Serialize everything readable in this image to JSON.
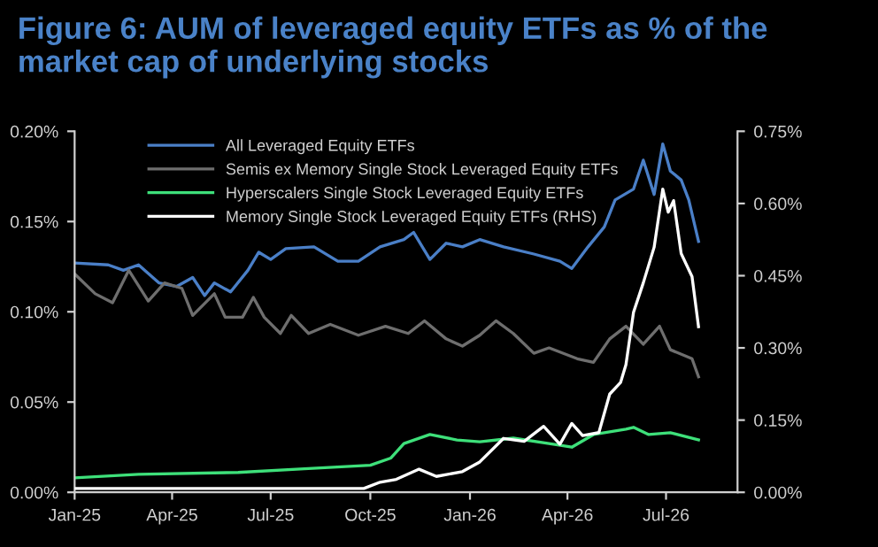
{
  "chart_data": {
    "type": "line",
    "title": "Figure 6: AUM of leveraged equity ETFs as % of the market cap of underlying stocks",
    "xlim": [
      "2025-01-01",
      "2026-09-05"
    ],
    "xticks": [
      {
        "value": "2025-01-01",
        "label": "Jan-25"
      },
      {
        "value": "2025-04-01",
        "label": "Apr-25"
      },
      {
        "value": "2025-07-01",
        "label": "Jul-25"
      },
      {
        "value": "2025-10-01",
        "label": "Oct-25"
      },
      {
        "value": "2026-01-01",
        "label": "Jan-26"
      },
      {
        "value": "2026-04-01",
        "label": "Apr-26"
      },
      {
        "value": "2026-07-01",
        "label": "Jul-26"
      }
    ],
    "ylim": [
      0,
      0.2
    ],
    "yticks": [
      {
        "value": 0,
        "label": "0.00%"
      },
      {
        "value": 0.05,
        "label": "0.05%"
      },
      {
        "value": 0.1,
        "label": "0.10%"
      },
      {
        "value": 0.15,
        "label": "0.15%"
      },
      {
        "value": 0.2,
        "label": "0.20%"
      }
    ],
    "y2lim": [
      0,
      0.75
    ],
    "y2ticks": [
      {
        "value": 0,
        "label": "0.00%"
      },
      {
        "value": 0.15,
        "label": "0.15%"
      },
      {
        "value": 0.3,
        "label": "0.30%"
      },
      {
        "value": 0.45,
        "label": "0.45%"
      },
      {
        "value": 0.6,
        "label": "0.60%"
      },
      {
        "value": 0.75,
        "label": "0.75%"
      }
    ],
    "grid": false,
    "legend": "top left",
    "marker": "none",
    "line_style": "solid",
    "series": [
      {
        "name": "All Leveraged Equity ETFs",
        "color": "#4a7fc7",
        "x": [
          "2025-01-01",
          "2025-02-01",
          "2025-02-15",
          "2025-03-01",
          "2025-03-20",
          "2025-04-05",
          "2025-04-20",
          "2025-05-01",
          "2025-05-10",
          "2025-05-25",
          "2025-06-10",
          "2025-06-20",
          "2025-07-01",
          "2025-07-15",
          "2025-08-10",
          "2025-09-01",
          "2025-09-20",
          "2025-10-10",
          "2025-11-01",
          "2025-11-10",
          "2025-11-25",
          "2025-12-10",
          "2025-12-25",
          "2026-01-10",
          "2026-02-01",
          "2026-03-01",
          "2026-03-25",
          "2026-04-05",
          "2026-04-20",
          "2026-05-05",
          "2026-05-15",
          "2026-06-01",
          "2026-06-10",
          "2026-06-20",
          "2026-06-28",
          "2026-07-05",
          "2026-07-15",
          "2026-07-22",
          "2026-07-31"
        ],
        "values": [
          0.127,
          0.126,
          0.123,
          0.126,
          0.116,
          0.114,
          0.119,
          0.109,
          0.116,
          0.111,
          0.123,
          0.133,
          0.129,
          0.135,
          0.136,
          0.128,
          0.128,
          0.136,
          0.14,
          0.144,
          0.129,
          0.138,
          0.136,
          0.14,
          0.136,
          0.132,
          0.128,
          0.124,
          0.136,
          0.147,
          0.162,
          0.168,
          0.184,
          0.165,
          0.193,
          0.178,
          0.173,
          0.162,
          0.139
        ]
      },
      {
        "name": "Semis ex Memory Single Stock Leveraged Equity ETFs",
        "color": "#6e6e6e",
        "x": [
          "2025-01-01",
          "2025-01-20",
          "2025-02-05",
          "2025-02-20",
          "2025-03-10",
          "2025-03-25",
          "2025-04-10",
          "2025-04-20",
          "2025-05-10",
          "2025-05-20",
          "2025-06-05",
          "2025-06-15",
          "2025-06-25",
          "2025-07-10",
          "2025-07-20",
          "2025-08-05",
          "2025-08-25",
          "2025-09-20",
          "2025-10-15",
          "2025-11-05",
          "2025-11-20",
          "2025-12-10",
          "2025-12-25",
          "2026-01-10",
          "2026-01-25",
          "2026-02-10",
          "2026-03-01",
          "2026-03-15",
          "2026-04-10",
          "2026-04-25",
          "2026-05-10",
          "2026-05-25",
          "2026-06-10",
          "2026-06-25",
          "2026-07-05",
          "2026-07-25",
          "2026-07-31"
        ],
        "values": [
          0.121,
          0.11,
          0.105,
          0.123,
          0.106,
          0.116,
          0.113,
          0.098,
          0.11,
          0.097,
          0.097,
          0.108,
          0.097,
          0.088,
          0.098,
          0.088,
          0.093,
          0.087,
          0.092,
          0.088,
          0.095,
          0.085,
          0.081,
          0.087,
          0.095,
          0.088,
          0.077,
          0.08,
          0.074,
          0.072,
          0.085,
          0.092,
          0.082,
          0.092,
          0.079,
          0.074,
          0.064
        ]
      },
      {
        "name": "Hyperscalers Single Stock Leveraged Equity ETFs",
        "color": "#3ee07a",
        "x": [
          "2025-01-01",
          "2025-03-01",
          "2025-06-01",
          "2025-08-01",
          "2025-10-01",
          "2025-10-20",
          "2025-11-01",
          "2025-11-25",
          "2025-12-20",
          "2026-01-10",
          "2026-02-10",
          "2026-03-15",
          "2026-04-05",
          "2026-04-25",
          "2026-05-25",
          "2026-06-01",
          "2026-06-15",
          "2026-07-05",
          "2026-07-31"
        ],
        "values": [
          0.008,
          0.01,
          0.011,
          0.013,
          0.015,
          0.019,
          0.027,
          0.032,
          0.029,
          0.028,
          0.03,
          0.027,
          0.025,
          0.032,
          0.035,
          0.036,
          0.032,
          0.033,
          0.029
        ]
      },
      {
        "name": "Memory Single Stock Leveraged Equity ETFs (RHS)",
        "color": "#ffffff",
        "axis": "y2",
        "x": [
          "2025-01-01",
          "2025-09-25",
          "2025-10-10",
          "2025-10-25",
          "2025-11-15",
          "2025-12-01",
          "2025-12-25",
          "2026-01-10",
          "2026-02-01",
          "2026-02-20",
          "2026-03-10",
          "2026-03-25",
          "2026-04-05",
          "2026-04-15",
          "2026-04-30",
          "2026-05-10",
          "2026-05-20",
          "2026-05-25",
          "2026-06-01",
          "2026-06-10",
          "2026-06-20",
          "2026-06-28",
          "2026-07-03",
          "2026-07-08",
          "2026-07-15",
          "2026-07-20",
          "2026-07-25",
          "2026-07-31"
        ],
        "values": [
          0.008,
          0.008,
          0.021,
          0.027,
          0.048,
          0.033,
          0.043,
          0.063,
          0.112,
          0.106,
          0.137,
          0.1,
          0.143,
          0.118,
          0.124,
          0.204,
          0.228,
          0.265,
          0.374,
          0.435,
          0.509,
          0.63,
          0.582,
          0.606,
          0.496,
          0.472,
          0.448,
          0.344
        ]
      }
    ]
  }
}
